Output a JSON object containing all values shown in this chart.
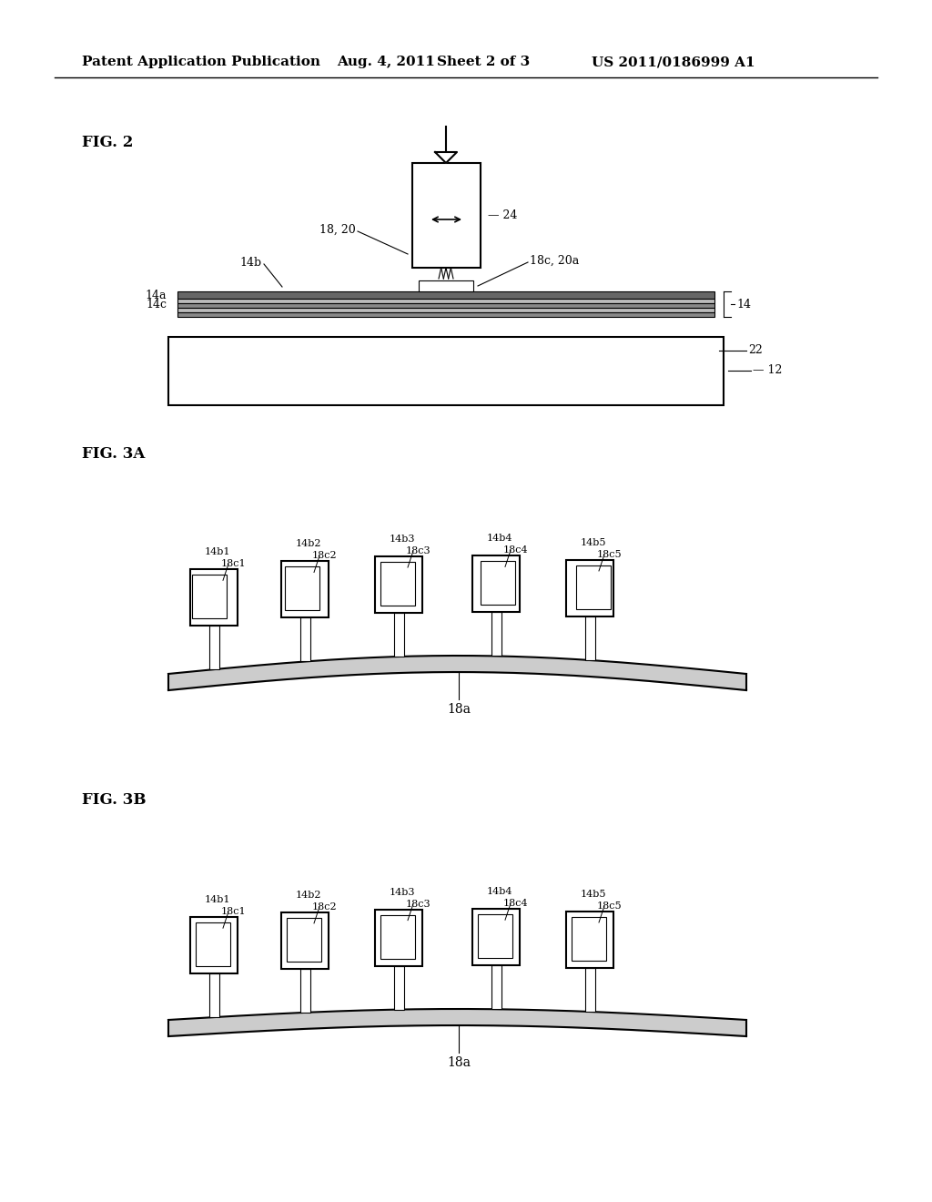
{
  "bg_color": "#ffffff",
  "header_text": "Patent Application Publication",
  "header_date": "Aug. 4, 2011",
  "header_sheet": "Sheet 2 of 3",
  "header_patent": "US 2011/0186999 A1",
  "fig2_label": "FIG. 2",
  "fig3a_label": "FIG. 3A",
  "fig3b_label": "FIG. 3B",
  "line_color": "#000000",
  "line_width": 1.5,
  "thin_line": 0.8
}
